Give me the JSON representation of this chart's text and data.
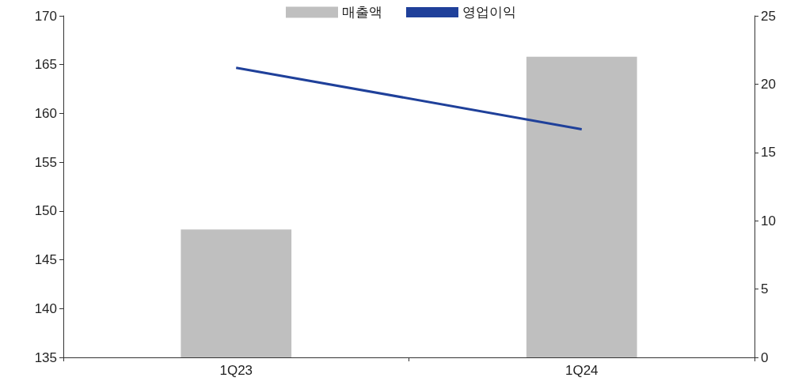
{
  "chart_data": {
    "type": "bar",
    "categories": [
      "1Q23",
      "1Q24"
    ],
    "series": [
      {
        "name": "매출액",
        "color": "#bfbfbf",
        "values": [
          148.1,
          165.8
        ]
      },
      {
        "name": "영업이익",
        "type": "line",
        "axis": "y2",
        "color": "#1f409a",
        "values": [
          21.2,
          16.7
        ]
      }
    ],
    "ylim": [
      135,
      170
    ],
    "yticks": [
      135,
      140,
      145,
      150,
      155,
      160,
      165,
      170
    ],
    "y2lim": [
      0,
      25
    ],
    "y2ticks": [
      0,
      5,
      10,
      15,
      20,
      25
    ],
    "grid": false,
    "legend": "top",
    "marker": "none"
  }
}
